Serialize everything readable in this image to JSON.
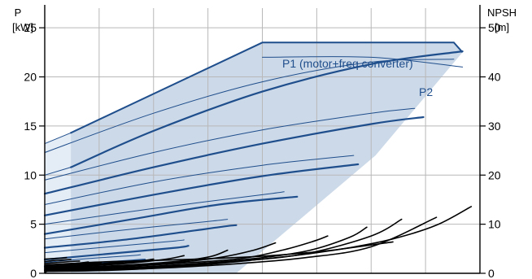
{
  "chart_data": {
    "type": "line",
    "left_axis": {
      "title_line1": "P",
      "title_line2": "[kW]",
      "ylim": [
        0,
        27
      ],
      "ticks": [
        0,
        5,
        10,
        15,
        20,
        25
      ]
    },
    "right_axis": {
      "title_line1": "NPSH",
      "title_line2": "[m]",
      "ylim": [
        0,
        54
      ],
      "ticks": [
        0,
        10,
        20,
        30,
        40,
        50
      ]
    },
    "x_axis": {
      "xlim": [
        0,
        100
      ],
      "grid": [
        0,
        12.5,
        25,
        37.5,
        50,
        62.5,
        75,
        87.5,
        100
      ]
    },
    "grid": true,
    "colors": {
      "power": "#1f4e8c",
      "envelope": "#ccd9e8",
      "envelope_light": "#e4ecf5",
      "npsh": "#000000",
      "grid": "#b8b8b8"
    },
    "labels": {
      "p1": "P1 (motor+freq converter)",
      "p2": "P2"
    },
    "envelope_light": [
      [
        0,
        0
      ],
      [
        0,
        13.2
      ],
      [
        6,
        14.3
      ],
      [
        6,
        0
      ]
    ],
    "envelope": [
      [
        6,
        0
      ],
      [
        6,
        14.3
      ],
      [
        50,
        23.5
      ],
      [
        94,
        23.5
      ],
      [
        96,
        22.5
      ],
      [
        76,
        12
      ],
      [
        52,
        3
      ],
      [
        44,
        0
      ]
    ],
    "p1_series": [
      {
        "x": [
          6,
          50,
          94
        ],
        "y": [
          14.3,
          23.5,
          23.5
        ],
        "width": 2.0
      },
      {
        "x": [
          0,
          6
        ],
        "y": [
          13.2,
          14.3
        ],
        "width": 1.0
      },
      {
        "x": [
          6,
          25,
          50,
          75,
          96
        ],
        "y": [
          10.8,
          14.5,
          18.5,
          21.3,
          22.6
        ],
        "width": 2.2
      },
      {
        "x": [
          0,
          6
        ],
        "y": [
          10.0,
          10.8
        ],
        "width": 1.0
      },
      {
        "x": [
          0,
          25,
          50,
          75,
          87
        ],
        "y": [
          8.1,
          10.8,
          13.2,
          15.2,
          15.9
        ],
        "width": 2.2
      },
      {
        "x": [
          0,
          25,
          50,
          72
        ],
        "y": [
          5.9,
          8.0,
          9.9,
          11.1
        ],
        "width": 2.2
      },
      {
        "x": [
          0,
          20,
          40,
          58
        ],
        "y": [
          4.0,
          5.5,
          7.0,
          7.8
        ],
        "width": 2.2
      },
      {
        "x": [
          0,
          20,
          40,
          44
        ],
        "y": [
          2.6,
          3.5,
          4.7,
          4.9
        ],
        "width": 2.2
      },
      {
        "x": [
          0,
          15,
          30,
          33
        ],
        "y": [
          1.4,
          2.0,
          2.6,
          2.8
        ],
        "width": 2.2
      },
      {
        "x": [
          0,
          10,
          20,
          23
        ],
        "y": [
          0.7,
          1.0,
          1.3,
          1.4
        ],
        "width": 2.2
      },
      {
        "x": [
          0,
          8,
          14
        ],
        "y": [
          0.3,
          0.4,
          0.5
        ],
        "width": 2.0
      }
    ],
    "p2_series": [
      {
        "x": [
          50,
          75,
          96
        ],
        "y": [
          22.0,
          22.0,
          21.0
        ],
        "width": 1.0
      },
      {
        "x": [
          0,
          25,
          50,
          75,
          94
        ],
        "y": [
          12.3,
          16.3,
          19.5,
          21.5,
          21.8
        ],
        "width": 1.0
      },
      {
        "x": [
          0,
          25,
          50,
          75,
          85
        ],
        "y": [
          9.5,
          12.3,
          14.6,
          16.3,
          16.8
        ],
        "width": 1.0
      },
      {
        "x": [
          0,
          25,
          50,
          71
        ],
        "y": [
          7.0,
          9.3,
          11.0,
          12.0
        ],
        "width": 1.0
      },
      {
        "x": [
          0,
          25,
          50,
          55
        ],
        "y": [
          5.0,
          6.6,
          8.0,
          8.3
        ],
        "width": 1.0
      },
      {
        "x": [
          0,
          20,
          38,
          42
        ],
        "y": [
          3.5,
          4.5,
          5.3,
          5.5
        ],
        "width": 1.0
      },
      {
        "x": [
          0,
          15,
          30,
          32
        ],
        "y": [
          2.1,
          2.7,
          3.3,
          3.4
        ],
        "width": 1.0
      },
      {
        "x": [
          0,
          10,
          20,
          22
        ],
        "y": [
          1.1,
          1.5,
          1.8,
          1.9
        ],
        "width": 1.0
      },
      {
        "x": [
          0,
          7,
          13
        ],
        "y": [
          0.5,
          0.7,
          0.8
        ],
        "width": 1.0
      }
    ],
    "npsh_series": [
      {
        "x": [
          0,
          10,
          20,
          30,
          40,
          50,
          60,
          70,
          80,
          90,
          98
        ],
        "y": [
          0.4,
          0.5,
          0.8,
          1.3,
          2.0,
          2.9,
          3.9,
          5.2,
          7.0,
          9.8,
          13.6
        ]
      },
      {
        "x": [
          0,
          15,
          30,
          45,
          60,
          75,
          90
        ],
        "y": [
          0.5,
          0.7,
          1.2,
          2.0,
          3.2,
          5.4,
          11.4
        ]
      },
      {
        "x": [
          0,
          15,
          30,
          45,
          60,
          75,
          82
        ],
        "y": [
          0.6,
          0.9,
          1.5,
          2.5,
          4.0,
          7.6,
          11.0
        ]
      },
      {
        "x": [
          0,
          15,
          30,
          45,
          60,
          70,
          74
        ],
        "y": [
          0.7,
          1.0,
          1.7,
          2.7,
          4.5,
          7.3,
          9.4
        ]
      },
      {
        "x": [
          0,
          15,
          30,
          45,
          55,
          62,
          65
        ],
        "y": [
          0.8,
          1.2,
          2.0,
          3.0,
          4.8,
          6.6,
          7.6
        ]
      },
      {
        "x": [
          0,
          15,
          30,
          40,
          48,
          53
        ],
        "y": [
          0.9,
          1.3,
          2.2,
          3.2,
          4.7,
          6.2
        ]
      },
      {
        "x": [
          0,
          15,
          30,
          38,
          42
        ],
        "y": [
          1.0,
          1.5,
          2.4,
          3.4,
          4.7
        ]
      },
      {
        "x": [
          0,
          10,
          20,
          28,
          32
        ],
        "y": [
          1.1,
          1.5,
          2.1,
          2.9,
          3.6
        ]
      },
      {
        "x": [
          0,
          8,
          16,
          22,
          25
        ],
        "y": [
          1.2,
          1.5,
          2.0,
          2.5,
          2.9
        ]
      },
      {
        "x": [
          0,
          6,
          12,
          18
        ],
        "y": [
          1.3,
          1.6,
          1.9,
          2.3
        ]
      },
      {
        "x": [
          0,
          5,
          10,
          13
        ],
        "y": [
          1.5,
          1.8,
          2.0,
          2.2
        ]
      },
      {
        "x": [
          0,
          4,
          8,
          10
        ],
        "y": [
          1.7,
          1.9,
          2.1,
          2.3
        ]
      },
      {
        "x": [
          0,
          3,
          6,
          8
        ],
        "y": [
          2.0,
          2.2,
          2.4,
          2.5
        ]
      },
      {
        "x": [
          0,
          2,
          4,
          6
        ],
        "y": [
          2.4,
          2.6,
          2.7,
          2.8
        ]
      },
      {
        "x": [
          0,
          2,
          4,
          5
        ],
        "y": [
          2.9,
          3.0,
          3.1,
          3.2
        ]
      },
      {
        "x": [
          0,
          4,
          10,
          20,
          35,
          50,
          65,
          80
        ],
        "y": [
          0.2,
          1.6,
          2.2,
          2.5,
          2.9,
          3.5,
          4.6,
          6.4
        ]
      }
    ]
  }
}
